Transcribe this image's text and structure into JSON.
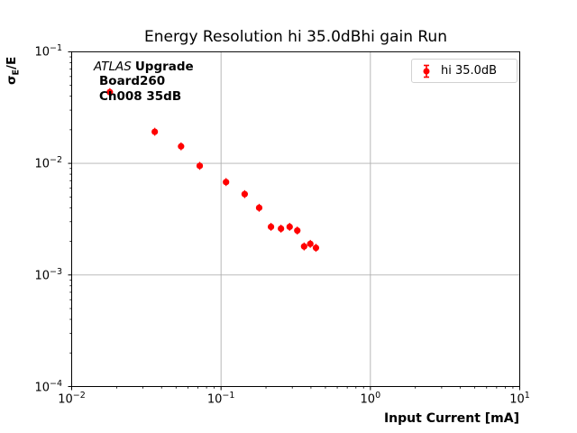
{
  "figure": {
    "title": "Energy Resolution hi 35.0dBhi gain Run",
    "xlabel": "Input Current [mA]",
    "ylabel": {
      "sigma": "σ",
      "sub": "E",
      "rest": "/E"
    },
    "annotation": {
      "line1_italic": "ATLAS",
      "line1_bold": "Upgrade",
      "line2": "Board260",
      "line3": "Ch008 35dB"
    },
    "legend": {
      "label": "hi 35.0dB",
      "marker_icon": "red-errorbar-circle"
    },
    "colors": {
      "marker": "#ff0000",
      "grid": "#b0b0b0",
      "spine": "#000000",
      "text": "#000000",
      "legend_border": "#d2d2d2",
      "background": "#ffffff"
    }
  },
  "chart_data": {
    "type": "scatter",
    "title": "Energy Resolution hi 35.0dBhi gain Run",
    "xlabel": "Input Current [mA]",
    "ylabel": "σ_E/E",
    "xscale": "log",
    "yscale": "log",
    "xlim": [
      0.01,
      10
    ],
    "ylim": [
      0.0001,
      0.1
    ],
    "x_tick_exponents": [
      -2,
      -1,
      0,
      1
    ],
    "y_tick_exponents": [
      -1,
      -2,
      -3,
      -4
    ],
    "grid": true,
    "legend_position": "upper right",
    "series": [
      {
        "name": "hi 35.0dB",
        "color": "#ff0000",
        "marker": "errorbar-circle",
        "x": [
          0.018,
          0.036,
          0.054,
          0.072,
          0.108,
          0.144,
          0.18,
          0.216,
          0.252,
          0.288,
          0.324,
          0.36,
          0.396,
          0.432
        ],
        "y": [
          0.0435,
          0.0192,
          0.0142,
          0.0095,
          0.0068,
          0.0053,
          0.004,
          0.0027,
          0.0026,
          0.0027,
          0.0025,
          0.0018,
          0.0019,
          0.00175
        ]
      }
    ]
  }
}
